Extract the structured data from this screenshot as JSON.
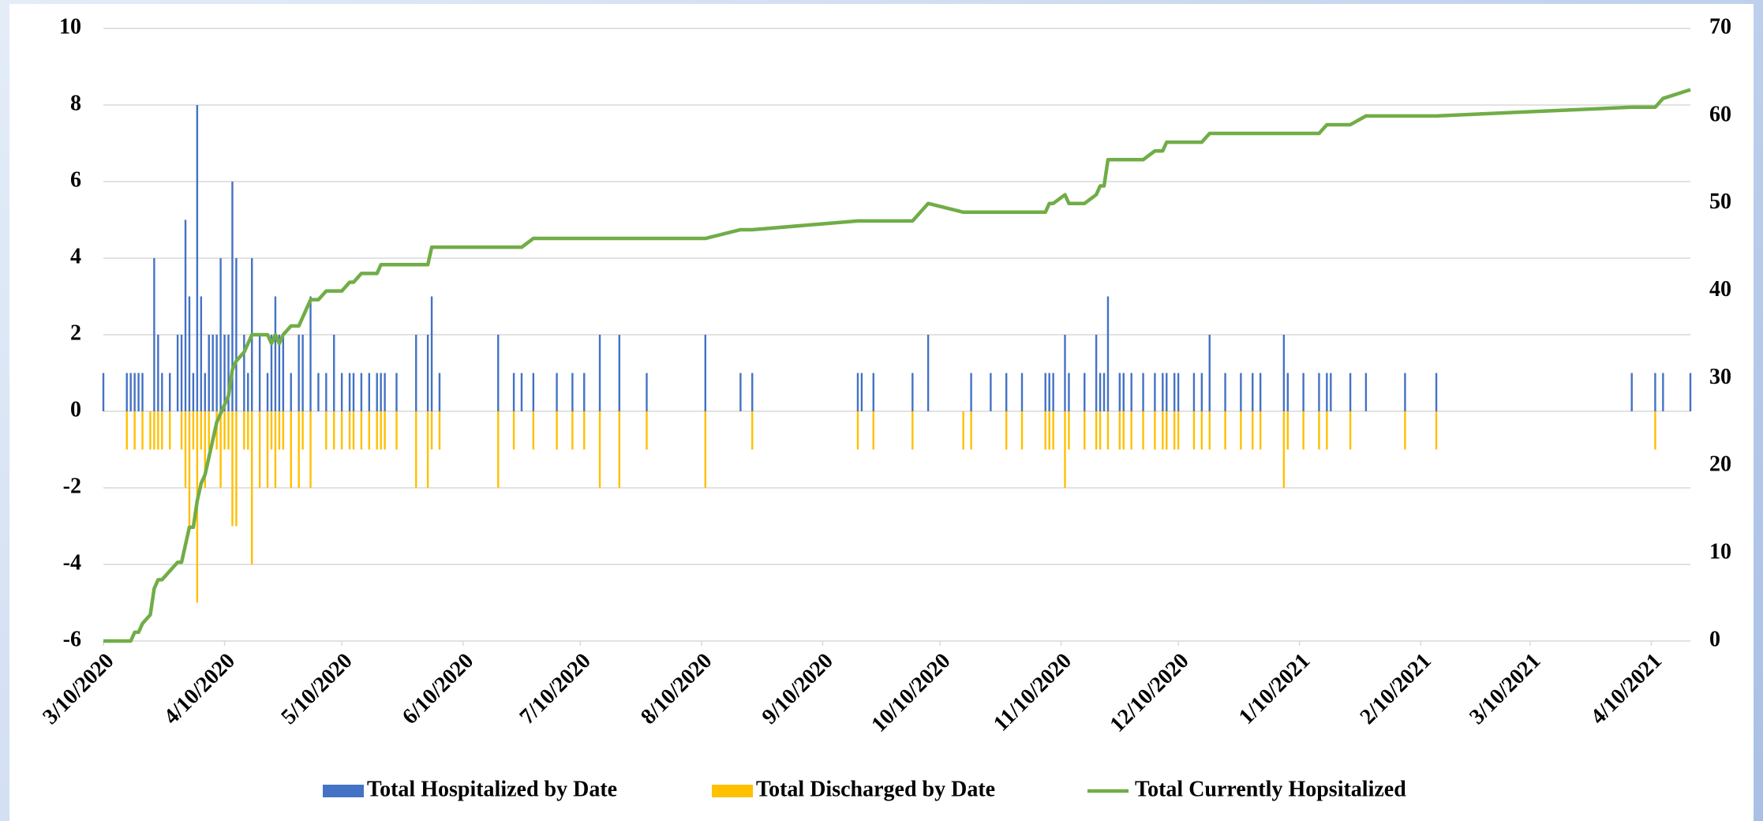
{
  "chart_data": {
    "type": "bar",
    "x": [
      "3/10/2020",
      "3/16/2020",
      "3/17/2020",
      "3/18/2020",
      "3/19/2020",
      "3/20/2020",
      "3/22/2020",
      "3/23/2020",
      "3/24/2020",
      "3/25/2020",
      "3/27/2020",
      "3/29/2020",
      "3/30/2020",
      "3/31/2020",
      "4/1/2020",
      "4/2/2020",
      "4/3/2020",
      "4/4/2020",
      "4/5/2020",
      "4/6/2020",
      "4/7/2020",
      "4/8/2020",
      "4/9/2020",
      "4/10/2020",
      "4/11/2020",
      "4/12/2020",
      "4/13/2020",
      "4/15/2020",
      "4/16/2020",
      "4/17/2020",
      "4/19/2020",
      "4/21/2020",
      "4/22/2020",
      "4/23/2020",
      "4/24/2020",
      "4/25/2020",
      "4/27/2020",
      "4/29/2020",
      "4/30/2020",
      "5/2/2020",
      "5/4/2020",
      "5/6/2020",
      "5/8/2020",
      "5/10/2020",
      "5/12/2020",
      "5/13/2020",
      "5/15/2020",
      "5/17/2020",
      "5/19/2020",
      "5/20/2020",
      "5/21/2020",
      "5/24/2020",
      "5/29/2020",
      "6/1/2020",
      "6/2/2020",
      "6/4/2020",
      "6/19/2020",
      "6/23/2020",
      "6/25/2020",
      "6/28/2020",
      "7/4/2020",
      "7/8/2020",
      "7/11/2020",
      "7/15/2020",
      "7/20/2020",
      "7/27/2020",
      "8/11/2020",
      "8/20/2020",
      "8/23/2020",
      "9/19/2020",
      "9/20/2020",
      "9/23/2020",
      "10/3/2020",
      "10/7/2020",
      "10/16/2020",
      "10/18/2020",
      "10/23/2020",
      "10/27/2020",
      "10/31/2020",
      "11/6/2020",
      "11/7/2020",
      "11/8/2020",
      "11/11/2020",
      "11/12/2020",
      "11/16/2020",
      "11/19/2020",
      "11/20/2020",
      "11/21/2020",
      "11/22/2020",
      "11/25/2020",
      "11/26/2020",
      "11/28/2020",
      "12/1/2020",
      "12/4/2020",
      "12/6/2020",
      "12/7/2020",
      "12/9/2020",
      "12/10/2020",
      "12/14/2020",
      "12/16/2020",
      "12/18/2020",
      "12/22/2020",
      "12/26/2020",
      "12/29/2020",
      "12/31/2020",
      "1/6/2021",
      "1/7/2021",
      "1/11/2021",
      "1/15/2021",
      "1/17/2021",
      "1/18/2021",
      "1/23/2021",
      "1/27/2021",
      "2/6/2021",
      "2/14/2021",
      "4/5/2021",
      "4/11/2021",
      "4/13/2021",
      "4/20/2021"
    ],
    "series": [
      {
        "name": "Total Hospitalized by Date",
        "type": "bar",
        "color": "#4472c4",
        "values": [
          1,
          1,
          1,
          1,
          1,
          1,
          0,
          4,
          2,
          1,
          1,
          2,
          2,
          5,
          3,
          1,
          8,
          3,
          1,
          2,
          2,
          2,
          4,
          2,
          2,
          6,
          4,
          2,
          1,
          4,
          2,
          1,
          2,
          3,
          2,
          2,
          1,
          2,
          2,
          3,
          1,
          1,
          2,
          1,
          1,
          1,
          1,
          1,
          1,
          1,
          1,
          1,
          2,
          2,
          3,
          1,
          2,
          1,
          1,
          1,
          1,
          1,
          1,
          2,
          2,
          1,
          2,
          1,
          1,
          1,
          1,
          1,
          1,
          2,
          0,
          1,
          1,
          1,
          1,
          1,
          1,
          1,
          2,
          1,
          1,
          2,
          1,
          1,
          3,
          1,
          1,
          1,
          1,
          1,
          1,
          1,
          1,
          1,
          1,
          1,
          2,
          1,
          1,
          1,
          1,
          2,
          1,
          1,
          1,
          1,
          1,
          1,
          1,
          1,
          1,
          1,
          1,
          1,
          1
        ]
      },
      {
        "name": "Total Discharged by Date",
        "type": "bar",
        "color": "#ffc000",
        "values": [
          0,
          -1,
          0,
          -1,
          0,
          -1,
          -1,
          -1,
          -1,
          -1,
          -1,
          0,
          -1,
          -2,
          -3,
          -1,
          -5,
          -1,
          -2,
          -1,
          0,
          -1,
          -2,
          -1,
          -1,
          -3,
          -3,
          -1,
          -1,
          -4,
          -2,
          -2,
          -1,
          -2,
          -1,
          -1,
          -2,
          -2,
          -1,
          -2,
          0,
          -1,
          -1,
          -1,
          -1,
          -1,
          -1,
          -1,
          -1,
          -1,
          -1,
          -1,
          -2,
          -2,
          -1,
          -1,
          -2,
          -1,
          0,
          -1,
          -1,
          -1,
          -1,
          -2,
          -2,
          -1,
          -2,
          0,
          -1,
          -1,
          0,
          -1,
          -1,
          0,
          -1,
          -1,
          0,
          -1,
          -1,
          -1,
          -1,
          -1,
          -2,
          -1,
          -1,
          -1,
          -1,
          0,
          -1,
          -1,
          -1,
          -1,
          -1,
          -1,
          -1,
          -1,
          -1,
          -1,
          -1,
          -1,
          -1,
          -1,
          -1,
          -1,
          -1,
          -2,
          -1,
          -1,
          -1,
          -1,
          0,
          -1,
          0,
          -1,
          -1,
          0,
          -1,
          0,
          0
        ]
      },
      {
        "name": "Total Currently Hopsitalized",
        "type": "line",
        "axis": "y2",
        "color": "#70ad47",
        "values": [
          0,
          0,
          0,
          1,
          1,
          2,
          3,
          6,
          7,
          7,
          8,
          9,
          9,
          11,
          13,
          13,
          16,
          18,
          19,
          21,
          23,
          25,
          26,
          27,
          28,
          31,
          32,
          33,
          34,
          35,
          35,
          35,
          34,
          35,
          34,
          35,
          36,
          36,
          37,
          39,
          39,
          40,
          40,
          40,
          41,
          41,
          42,
          42,
          42,
          43,
          43,
          43,
          43,
          43,
          45,
          45,
          45,
          45,
          45,
          46,
          46,
          46,
          46,
          46,
          46,
          46,
          46,
          47,
          47,
          48,
          48,
          48,
          48,
          50,
          49,
          49,
          49,
          49,
          49,
          49,
          50,
          50,
          51,
          50,
          50,
          51,
          52,
          52,
          55,
          55,
          55,
          55,
          55,
          56,
          56,
          57,
          57,
          57,
          57,
          57,
          58,
          58,
          58,
          58,
          58,
          58,
          58,
          58,
          58,
          59,
          59,
          59,
          60,
          60,
          60,
          61,
          61,
          62,
          63
        ]
      }
    ],
    "xlim": [
      "3/10/2020",
      "4/20/2021"
    ],
    "xticks": [
      "3/10/2020",
      "4/10/2020",
      "5/10/2020",
      "6/10/2020",
      "7/10/2020",
      "8/10/2020",
      "9/10/2020",
      "10/10/2020",
      "11/10/2020",
      "12/10/2020",
      "1/10/2021",
      "2/10/2021",
      "3/10/2021",
      "4/10/2021"
    ],
    "ylim": [
      -6,
      10
    ],
    "yticks": [
      -6,
      -4,
      -2,
      0,
      2,
      4,
      6,
      8,
      10
    ],
    "y2lim": [
      0,
      70
    ],
    "y2ticks": [
      0,
      10,
      20,
      30,
      40,
      50,
      60,
      70
    ],
    "grid": true,
    "legend": "bottom"
  }
}
